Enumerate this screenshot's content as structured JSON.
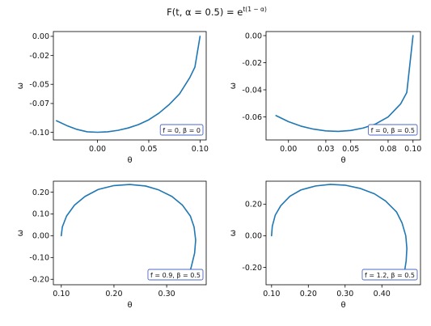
{
  "title": {
    "main": "F(t, α = 0.5) = e",
    "sup": "t(1 − α)"
  },
  "style": {
    "line_color": "#1f77b4",
    "legend_border": "#4b68c9"
  },
  "chart_data": [
    {
      "type": "line",
      "legend": "f = 0, β = 0",
      "xlabel": "θ",
      "ylabel": "ω",
      "xlim": [
        -0.043,
        0.106
      ],
      "ylim": [
        -0.108,
        0.005
      ],
      "xticks": [
        0.0,
        0.05,
        0.1
      ],
      "xticklabels": [
        "0.00",
        "0.05",
        "0.10"
      ],
      "yticks": [
        0.0,
        -0.02,
        -0.05,
        -0.07,
        -0.1
      ],
      "yticklabels": [
        "0.00",
        "-0.02",
        "-0.05",
        "-0.07",
        "-0.10"
      ],
      "x": [
        -0.04,
        -0.03,
        -0.02,
        -0.01,
        0.0,
        0.01,
        0.02,
        0.03,
        0.04,
        0.05,
        0.06,
        0.07,
        0.08,
        0.09,
        0.095,
        0.1
      ],
      "y": [
        -0.088,
        -0.093,
        -0.097,
        -0.0995,
        -0.1,
        -0.0995,
        -0.098,
        -0.0955,
        -0.092,
        -0.087,
        -0.08,
        -0.071,
        -0.06,
        -0.043,
        -0.032,
        0.0
      ]
    },
    {
      "type": "line",
      "legend": "f = 0, β = 0.5",
      "xlabel": "θ",
      "ylabel": "ω",
      "xlim": [
        -0.018,
        0.106
      ],
      "ylim": [
        -0.077,
        0.003
      ],
      "xticks": [
        0.0,
        0.03,
        0.05,
        0.08,
        0.1
      ],
      "xticklabels": [
        "0.00",
        "0.03",
        "0.05",
        "0.08",
        "0.10"
      ],
      "yticks": [
        0.0,
        -0.02,
        -0.04,
        -0.06
      ],
      "yticklabels": [
        "0.00",
        "-0.02",
        "-0.04",
        "-0.06"
      ],
      "x": [
        -0.01,
        0.0,
        0.01,
        0.02,
        0.03,
        0.04,
        0.05,
        0.06,
        0.07,
        0.08,
        0.09,
        0.095,
        0.1
      ],
      "y": [
        -0.059,
        -0.0635,
        -0.0668,
        -0.069,
        -0.0703,
        -0.0707,
        -0.07,
        -0.0682,
        -0.0652,
        -0.06,
        -0.0505,
        -0.042,
        0.0
      ]
    },
    {
      "type": "line",
      "legend": "f = 0.9, β = 0.5",
      "xlabel": "θ",
      "ylabel": "ω",
      "xlim": [
        0.085,
        0.375
      ],
      "ylim": [
        -0.225,
        0.25
      ],
      "xticks": [
        0.1,
        0.2,
        0.3
      ],
      "xticklabels": [
        "0.10",
        "0.20",
        "0.30"
      ],
      "yticks": [
        0.2,
        0.1,
        0.0,
        -0.1,
        -0.2
      ],
      "yticklabels": [
        "0.20",
        "0.10",
        "0.00",
        "-0.10",
        "-0.20"
      ],
      "x": [
        0.1,
        0.102,
        0.11,
        0.125,
        0.145,
        0.17,
        0.2,
        0.23,
        0.26,
        0.285,
        0.31,
        0.33,
        0.345,
        0.352,
        0.355,
        0.353,
        0.347,
        0.34
      ],
      "y": [
        0.0,
        0.04,
        0.09,
        0.14,
        0.18,
        0.212,
        0.23,
        0.235,
        0.228,
        0.21,
        0.18,
        0.14,
        0.09,
        0.04,
        -0.02,
        -0.08,
        -0.14,
        -0.2
      ]
    },
    {
      "type": "line",
      "legend": "f = 1.2, β = 0.5",
      "xlabel": "θ",
      "ylabel": "ω",
      "xlim": [
        0.085,
        0.505
      ],
      "ylim": [
        -0.31,
        0.345
      ],
      "xticks": [
        0.1,
        0.2,
        0.3,
        0.4
      ],
      "xticklabels": [
        "0.10",
        "0.20",
        "0.30",
        "0.40"
      ],
      "yticks": [
        0.2,
        0.0,
        -0.2
      ],
      "yticklabels": [
        "0.20",
        "0.00",
        "-0.20"
      ],
      "x": [
        0.1,
        0.102,
        0.11,
        0.125,
        0.15,
        0.18,
        0.22,
        0.26,
        0.3,
        0.34,
        0.38,
        0.41,
        0.44,
        0.455,
        0.465,
        0.468,
        0.466,
        0.46
      ],
      "y": [
        0.0,
        0.06,
        0.13,
        0.19,
        0.25,
        0.29,
        0.315,
        0.325,
        0.32,
        0.3,
        0.265,
        0.22,
        0.15,
        0.08,
        0.0,
        -0.08,
        -0.16,
        -0.25
      ]
    }
  ]
}
